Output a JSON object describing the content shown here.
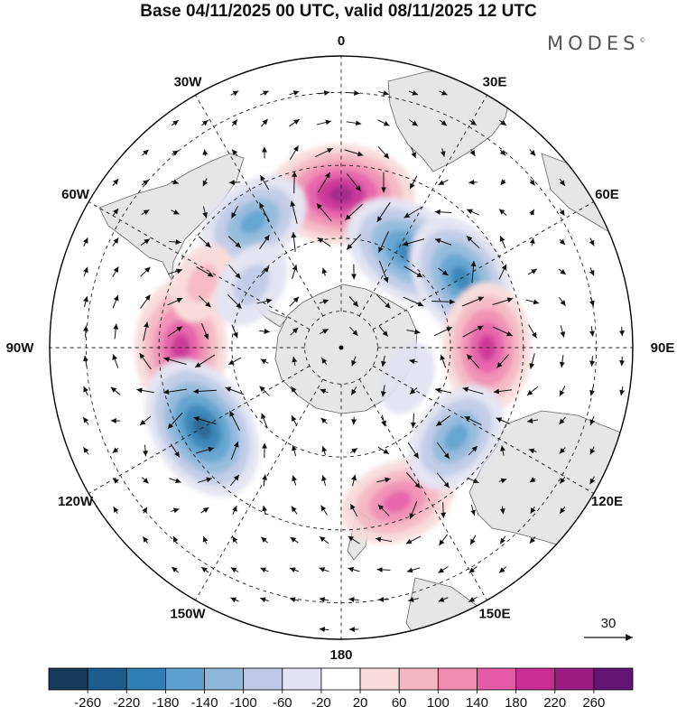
{
  "header": {
    "title": "Base 04/11/2025 00 UTC, valid 08/11/2025 12 UTC",
    "brand": "MODES",
    "brand_mark": "©"
  },
  "chart_data": {
    "type": "heatmap",
    "projection": "south-polar-stereographic",
    "title": "Base 04/11/2025 00 UTC, valid 08/11/2025 12 UTC",
    "longitude_labels": [
      "0",
      "30E",
      "60E",
      "90E",
      "120E",
      "150E",
      "180",
      "150W",
      "120W",
      "90W",
      "60W",
      "30W"
    ],
    "reference_vector_label": "30",
    "colorbar_ticks": [
      -260,
      -220,
      -180,
      -140,
      -100,
      -60,
      -20,
      20,
      60,
      100,
      140,
      180,
      220,
      260
    ],
    "colorbar_colors": [
      "#173a5c",
      "#1f5c8e",
      "#2f7fb5",
      "#5a9fce",
      "#8eb7da",
      "#bdc9e6",
      "#e2e2f2",
      "#ffffff",
      "#f8dada",
      "#f5b6c3",
      "#f08bb0",
      "#e55aa6",
      "#c92c92",
      "#9b1b82",
      "#621572"
    ],
    "anomalies": [
      {
        "lon": 0,
        "lat": -48,
        "value": 230
      },
      {
        "lon": -35,
        "lat": -48,
        "value": -150
      },
      {
        "lon": 35,
        "lat": -58,
        "value": -200
      },
      {
        "lon": 60,
        "lat": -52,
        "value": -190
      },
      {
        "lon": 90,
        "lat": -50,
        "value": 185
      },
      {
        "lon": -90,
        "lat": -46,
        "value": 200
      },
      {
        "lon": -120,
        "lat": -46,
        "value": -230
      },
      {
        "lon": 160,
        "lat": -45,
        "value": 150
      },
      {
        "lon": 128,
        "lat": -50,
        "value": -150
      },
      {
        "lon": -65,
        "lat": -48,
        "value": 60
      },
      {
        "lon": -55,
        "lat": -60,
        "value": -80
      },
      {
        "lon": 115,
        "lat": -70,
        "value": -40
      }
    ]
  }
}
